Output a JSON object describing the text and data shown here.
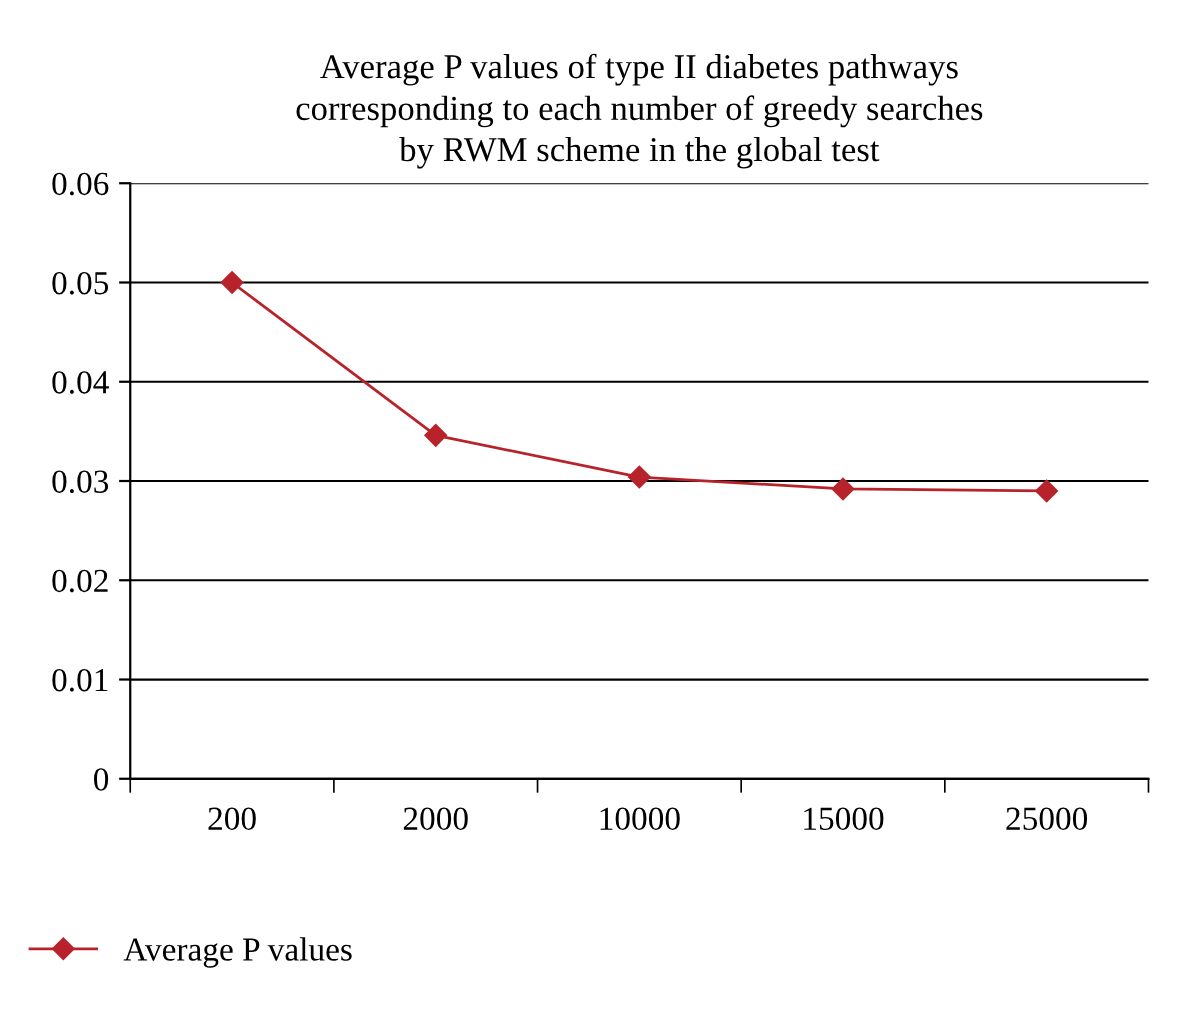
{
  "chart_data": {
    "type": "line",
    "title": "Average P values of type II diabetes pathways\ncorresponding to each number of greedy searches\nby RWM scheme in the global test",
    "categories": [
      "200",
      "2000",
      "10000",
      "15000",
      "25000"
    ],
    "series": [
      {
        "name": "Average P values",
        "color": "#b8232b",
        "values": [
          0.05,
          0.0346,
          0.0304,
          0.0292,
          0.029
        ]
      }
    ],
    "ylim": [
      0,
      0.06
    ],
    "yticks": [
      {
        "value": 0,
        "label": "0"
      },
      {
        "value": 0.01,
        "label": "0.01"
      },
      {
        "value": 0.02,
        "label": "0.02"
      },
      {
        "value": 0.03,
        "label": "0.03"
      },
      {
        "value": 0.04,
        "label": "0.04"
      },
      {
        "value": 0.05,
        "label": "0.05"
      },
      {
        "value": 0.06,
        "label": "0.06"
      }
    ],
    "grid": "y",
    "legend": "bottom left",
    "marker": "diamond",
    "line_style": "solid"
  }
}
